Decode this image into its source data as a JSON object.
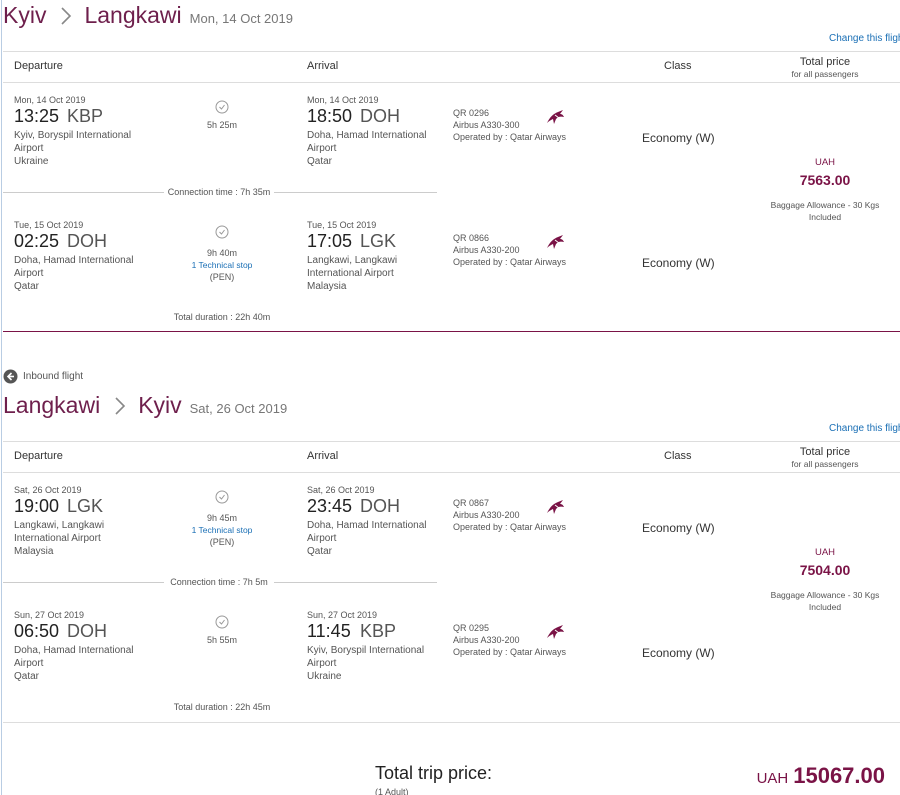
{
  "sections": [
    {
      "from": "Kyiv",
      "to": "Langkawi",
      "date": "Mon, 14 Oct 2019",
      "change": "Change this flight",
      "headers": {
        "departure": "Departure",
        "arrival": "Arrival",
        "class": "Class",
        "total": "Total price",
        "total_sub": "for all passengers"
      },
      "legs": [
        {
          "dep_date": "Mon, 14 Oct 2019",
          "dep_time": "13:25",
          "dep_code": "KBP",
          "dep_place": [
            "Kyiv, Boryspil International",
            "Airport",
            "Ukraine"
          ],
          "duration": "5h 25m",
          "arr_date": "Mon, 14 Oct 2019",
          "arr_time": "18:50",
          "arr_code": "DOH",
          "arr_place": [
            "Doha, Hamad International",
            "Airport",
            "Qatar"
          ],
          "flight": "QR 0296",
          "aircraft": "Airbus A330-300",
          "operated": "Operated by : Qatar Airways",
          "class": "Economy (W)"
        },
        {
          "dep_date": "Tue, 15 Oct 2019",
          "dep_time": "02:25",
          "dep_code": "DOH",
          "dep_place": [
            "Doha, Hamad International",
            "Airport",
            "Qatar"
          ],
          "duration": "9h 40m",
          "stop": "1 Technical stop",
          "stop_place": "(PEN)",
          "arr_date": "Tue, 15 Oct 2019",
          "arr_time": "17:05",
          "arr_code": "LGK",
          "arr_place": [
            "Langkawi, Langkawi",
            "International Airport",
            "Malaysia"
          ],
          "flight": "QR 0866",
          "aircraft": "Airbus A330-200",
          "operated": "Operated by : Qatar Airways",
          "class": "Economy (W)"
        }
      ],
      "connection": "Connection time : 7h 35m",
      "total_duration": "Total duration : 22h 40m",
      "price": {
        "currency": "UAH",
        "amount": "7563.00",
        "baggage": "Baggage Allowance - 30 Kgs",
        "included": "Included"
      }
    },
    {
      "label": "Inbound flight",
      "from": "Langkawi",
      "to": "Kyiv",
      "date": "Sat, 26 Oct 2019",
      "change": "Change this flight",
      "headers": {
        "departure": "Departure",
        "arrival": "Arrival",
        "class": "Class",
        "total": "Total price",
        "total_sub": "for all passengers"
      },
      "legs": [
        {
          "dep_date": "Sat, 26 Oct 2019",
          "dep_time": "19:00",
          "dep_code": "LGK",
          "dep_place": [
            "Langkawi, Langkawi",
            "International Airport",
            "Malaysia"
          ],
          "duration": "9h 45m",
          "stop": "1 Technical stop",
          "stop_place": "(PEN)",
          "arr_date": "Sat, 26 Oct 2019",
          "arr_time": "23:45",
          "arr_code": "DOH",
          "arr_place": [
            "Doha, Hamad International",
            "Airport",
            "Qatar"
          ],
          "flight": "QR 0867",
          "aircraft": "Airbus A330-200",
          "operated": "Operated by : Qatar Airways",
          "class": "Economy (W)"
        },
        {
          "dep_date": "Sun, 27 Oct 2019",
          "dep_time": "06:50",
          "dep_code": "DOH",
          "dep_place": [
            "Doha, Hamad International",
            "Airport",
            "Qatar"
          ],
          "duration": "5h 55m",
          "arr_date": "Sun, 27 Oct 2019",
          "arr_time": "11:45",
          "arr_code": "KBP",
          "arr_place": [
            "Kyiv, Boryspil International",
            "Airport",
            "Ukraine"
          ],
          "flight": "QR 0295",
          "aircraft": "Airbus A330-200",
          "operated": "Operated by : Qatar Airways",
          "class": "Economy (W)"
        }
      ],
      "connection": "Connection time : 7h 5m",
      "total_duration": "Total duration : 22h 45m",
      "price": {
        "currency": "UAH",
        "amount": "7504.00",
        "baggage": "Baggage Allowance - 30 Kgs",
        "included": "Included"
      }
    }
  ],
  "total": {
    "label": "Total trip price:",
    "passengers": "(1 Adult)",
    "currency": "UAH",
    "amount": "15067.00"
  }
}
